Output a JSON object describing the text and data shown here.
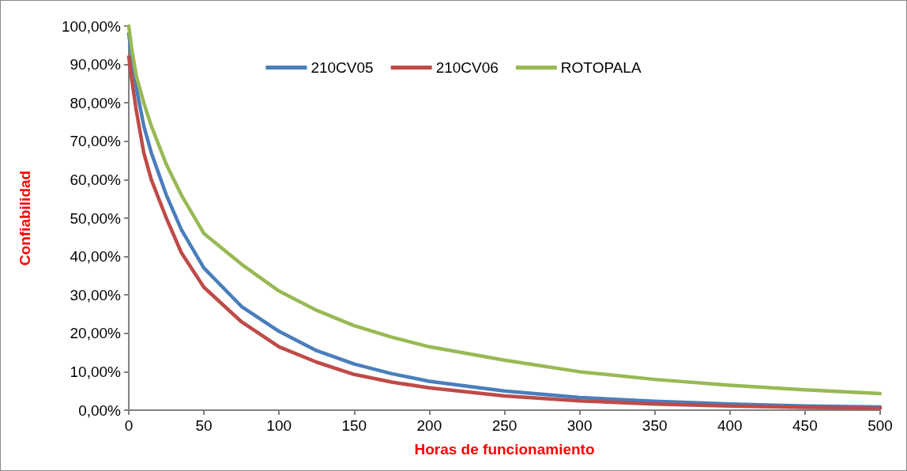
{
  "chart_data": {
    "type": "line",
    "xlabel": "Horas de funcionamiento",
    "ylabel": "Confiabilidad",
    "x": [
      0,
      2,
      5,
      10,
      15,
      25,
      35,
      50,
      75,
      100,
      125,
      150,
      175,
      200,
      250,
      300,
      350,
      400,
      450,
      500
    ],
    "series": [
      {
        "name": "210CV05",
        "color": "#4a7ebb",
        "values": [
          98,
          92,
          84,
          74,
          67,
          56,
          47,
          37,
          27,
          20.5,
          15.5,
          12,
          9.5,
          7.5,
          5,
          3.3,
          2.3,
          1.6,
          1.1,
          0.8
        ]
      },
      {
        "name": "210CV06",
        "color": "#be4b48",
        "values": [
          92,
          86,
          78,
          67,
          60,
          50,
          41,
          32,
          23,
          16.5,
          12.5,
          9.3,
          7.3,
          5.8,
          3.7,
          2.4,
          1.6,
          1.1,
          0.7,
          0.5
        ]
      },
      {
        "name": "ROTOPALA",
        "color": "#98b954",
        "values": [
          100,
          94,
          87,
          80,
          74,
          64,
          56,
          46,
          38,
          31,
          26,
          22,
          19,
          16.5,
          13,
          10,
          8,
          6.5,
          5.3,
          4.3
        ]
      }
    ],
    "xlim": [
      0,
      500
    ],
    "xticks": [
      0,
      50,
      100,
      150,
      200,
      250,
      300,
      350,
      400,
      450,
      500
    ],
    "ylim": [
      0,
      100
    ],
    "yticks": [
      {
        "value": 0,
        "label": "0,00%"
      },
      {
        "value": 10,
        "label": "10,00%"
      },
      {
        "value": 20,
        "label": "20,00%"
      },
      {
        "value": 30,
        "label": "30,00%"
      },
      {
        "value": 40,
        "label": "40,00%"
      },
      {
        "value": 50,
        "label": "50,00%"
      },
      {
        "value": 60,
        "label": "60,00%"
      },
      {
        "value": 70,
        "label": "70,00%"
      },
      {
        "value": 80,
        "label": "80,00%"
      },
      {
        "value": 90,
        "label": "90,00%"
      },
      {
        "value": 100,
        "label": "100,00%"
      }
    ],
    "grid": false,
    "legend": "top",
    "marker": "none",
    "line_style": "solid"
  }
}
